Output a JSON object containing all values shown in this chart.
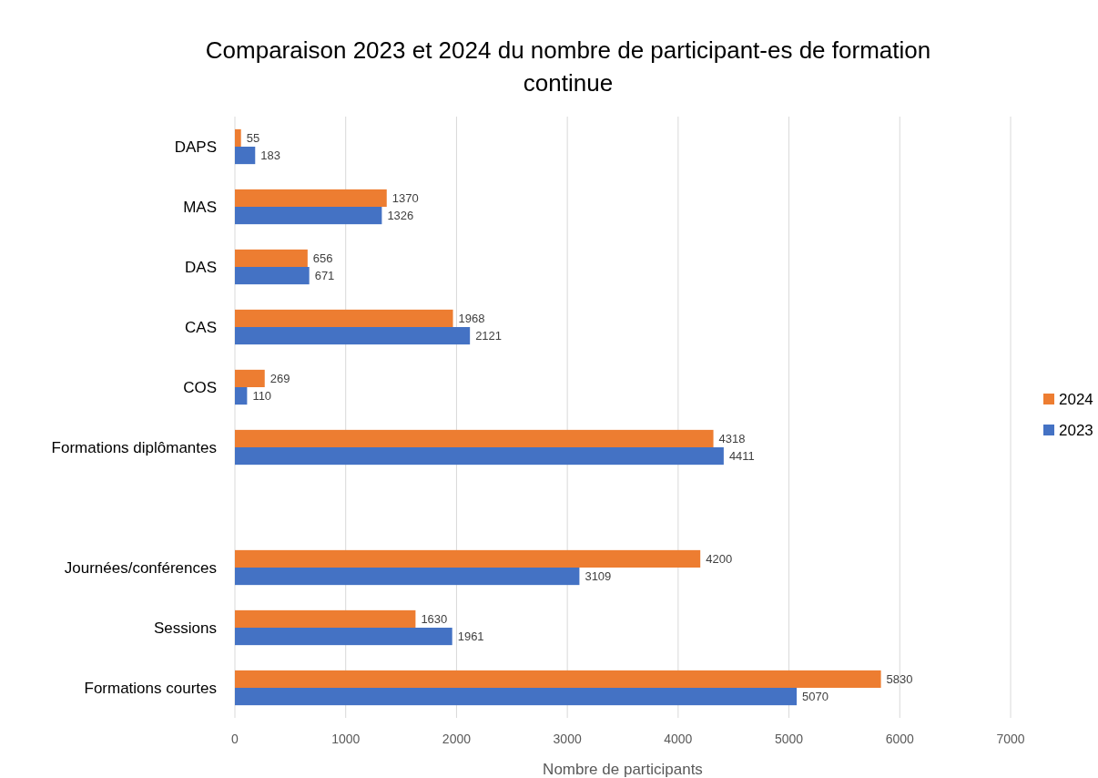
{
  "chart_data": {
    "type": "bar",
    "orientation": "horizontal",
    "title": "Comparaison 2023 et 2024 du nombre de participant-es de formation continue",
    "xlabel": "Nombre de participants",
    "categories": [
      "DAPS",
      "MAS",
      "DAS",
      "CAS",
      "COS",
      "Formations diplômantes",
      null,
      "Journées/conférences",
      "Sessions",
      "Formations courtes"
    ],
    "series": [
      {
        "name": "2024",
        "color": "#ed7d31",
        "values": [
          55,
          1370,
          656,
          1968,
          269,
          4318,
          null,
          4200,
          1630,
          5830
        ]
      },
      {
        "name": "2023",
        "color": "#4472c4",
        "values": [
          183,
          1326,
          671,
          2121,
          110,
          4411,
          null,
          3109,
          1961,
          5070
        ]
      }
    ],
    "xlim": [
      0,
      7000
    ],
    "xticks": [
      0,
      1000,
      2000,
      3000,
      4000,
      5000,
      6000,
      7000
    ],
    "grid": "x",
    "legend": "right",
    "data_labels": true
  }
}
